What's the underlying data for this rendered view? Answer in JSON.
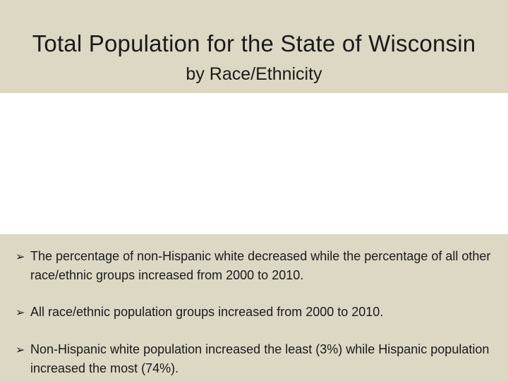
{
  "slide": {
    "title": "Total Population for the State of Wisconsin",
    "subtitle": "by Race/Ethnicity",
    "bullet_icon": "arrow-bullet-icon",
    "bullet_glyph": "➢",
    "bullets": [
      "The percentage of non-Hispanic white decreased while the percentage of all other race/ethnic groups  increased from 2000 to 2010.",
      "All race/ethnic population groups increased from 2000 to 2010.",
      "Non-Hispanic white population increased the least (3%) while Hispanic population increased the most (74%)."
    ]
  },
  "colors": {
    "band_background": "#ddd8c4",
    "content_background": "#ffffff",
    "text": "#1a1a1a"
  }
}
